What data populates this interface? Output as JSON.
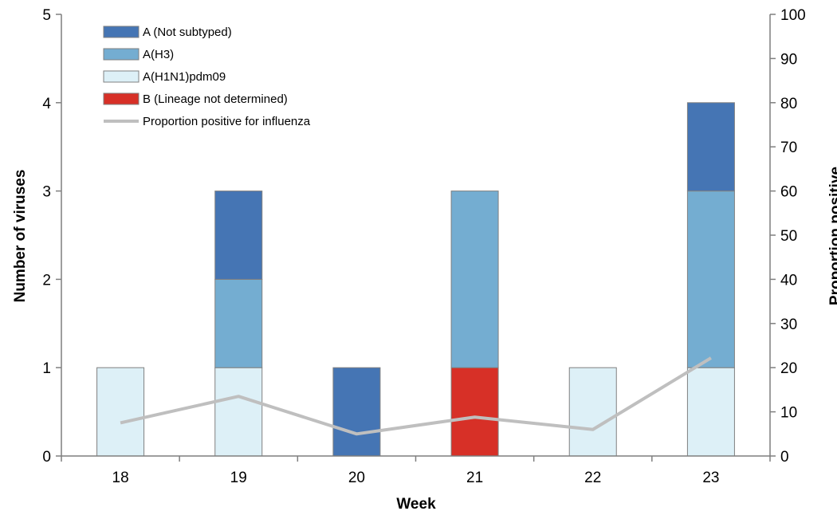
{
  "chart_data": {
    "type": "bar",
    "stacked": true,
    "categories": [
      "18",
      "19",
      "20",
      "21",
      "22",
      "23"
    ],
    "xlabel": "Week",
    "ylabel": "Number of viruses",
    "y2label": "Proportion positive",
    "ylim": [
      0,
      5
    ],
    "y2lim": [
      0,
      100
    ],
    "yticks": [
      "0",
      "1",
      "2",
      "3",
      "4",
      "5"
    ],
    "y2ticks": [
      "0",
      "10",
      "20",
      "30",
      "40",
      "50",
      "60",
      "70",
      "80",
      "90",
      "100"
    ],
    "legend_position": "top-left",
    "grid": false,
    "series": [
      {
        "name": "A(H1N1)pdm09",
        "values": [
          1,
          1,
          0,
          0,
          1,
          1
        ],
        "color": "#ddf0f7"
      },
      {
        "name": "B (Lineage not determined)",
        "values": [
          0,
          0,
          0,
          1,
          0,
          0
        ],
        "color": "#d73027"
      },
      {
        "name": "A(H3)",
        "values": [
          0,
          1,
          0,
          2,
          0,
          2
        ],
        "color": "#74add1"
      },
      {
        "name": "A (Not subtyped)",
        "values": [
          0,
          1,
          1,
          0,
          0,
          1
        ],
        "color": "#4575b4"
      }
    ],
    "line_series": {
      "name": "Proportion positive for influenza",
      "axis": "right",
      "values": [
        7.5,
        13.5,
        5,
        8.8,
        6,
        22.2
      ],
      "color": "#bfbfbf"
    },
    "legend": [
      "A (Not subtyped)",
      "A(H3)",
      "A(H1N1)pdm09",
      "B (Lineage not determined)",
      "Proportion positive for influenza"
    ]
  }
}
